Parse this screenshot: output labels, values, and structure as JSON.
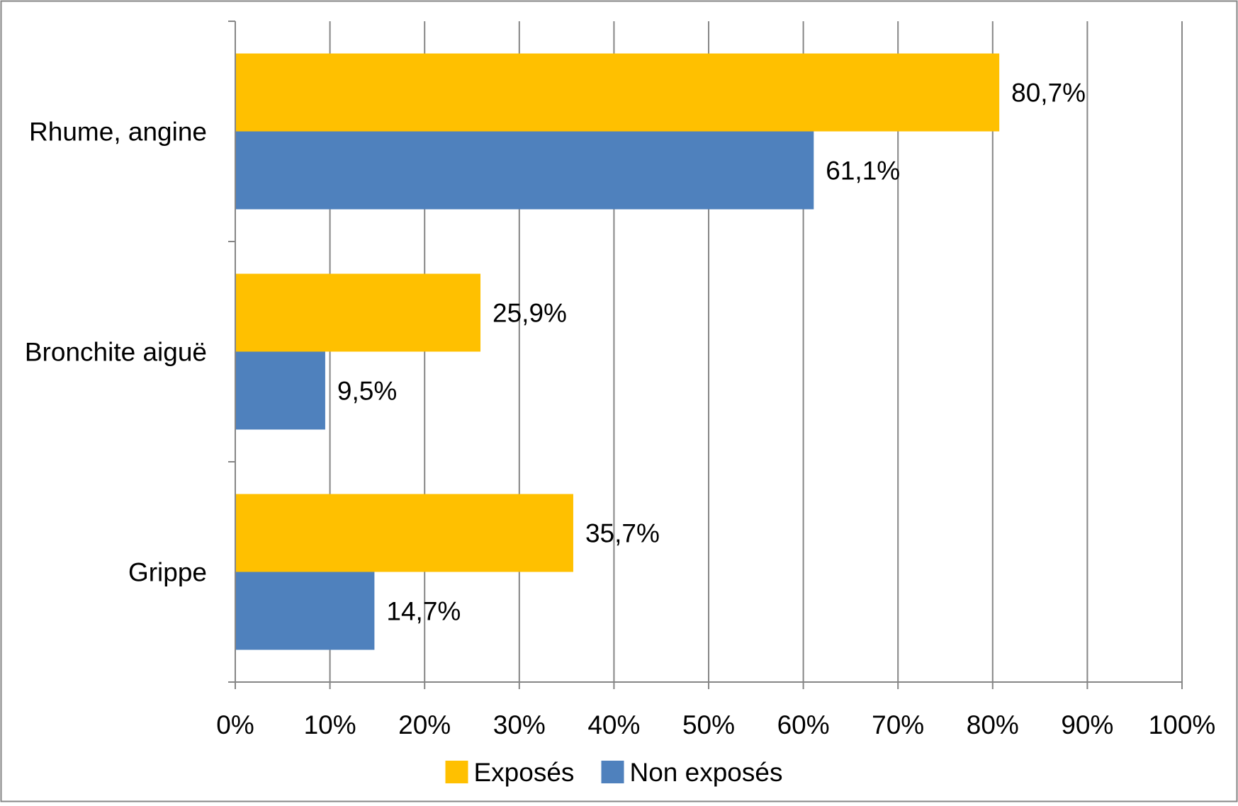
{
  "chart_data": {
    "type": "bar",
    "orientation": "horizontal",
    "title": "",
    "xlabel": "",
    "ylabel": "",
    "categories": [
      "Rhume, angine",
      "Bronchite aiguë",
      "Grippe"
    ],
    "series": [
      {
        "name": "Exposés",
        "color": "#FFC000",
        "values": [
          80.7,
          25.9,
          35.7
        ],
        "labels": [
          "80,7%",
          "25,9%",
          "35,7%"
        ]
      },
      {
        "name": "Non exposés",
        "color": "#4F81BD",
        "values": [
          61.1,
          9.5,
          14.7
        ],
        "labels": [
          "61,1%",
          "9,5%",
          "14,7%"
        ]
      }
    ],
    "xlim": [
      0,
      100
    ],
    "xticks": [
      "0%",
      "10%",
      "20%",
      "30%",
      "40%",
      "50%",
      "60%",
      "70%",
      "80%",
      "90%",
      "100%"
    ],
    "grid": "vertical",
    "legend": "bottom",
    "colors": {
      "grid": "#868686",
      "axis": "#868686",
      "frame": "#868686"
    }
  }
}
